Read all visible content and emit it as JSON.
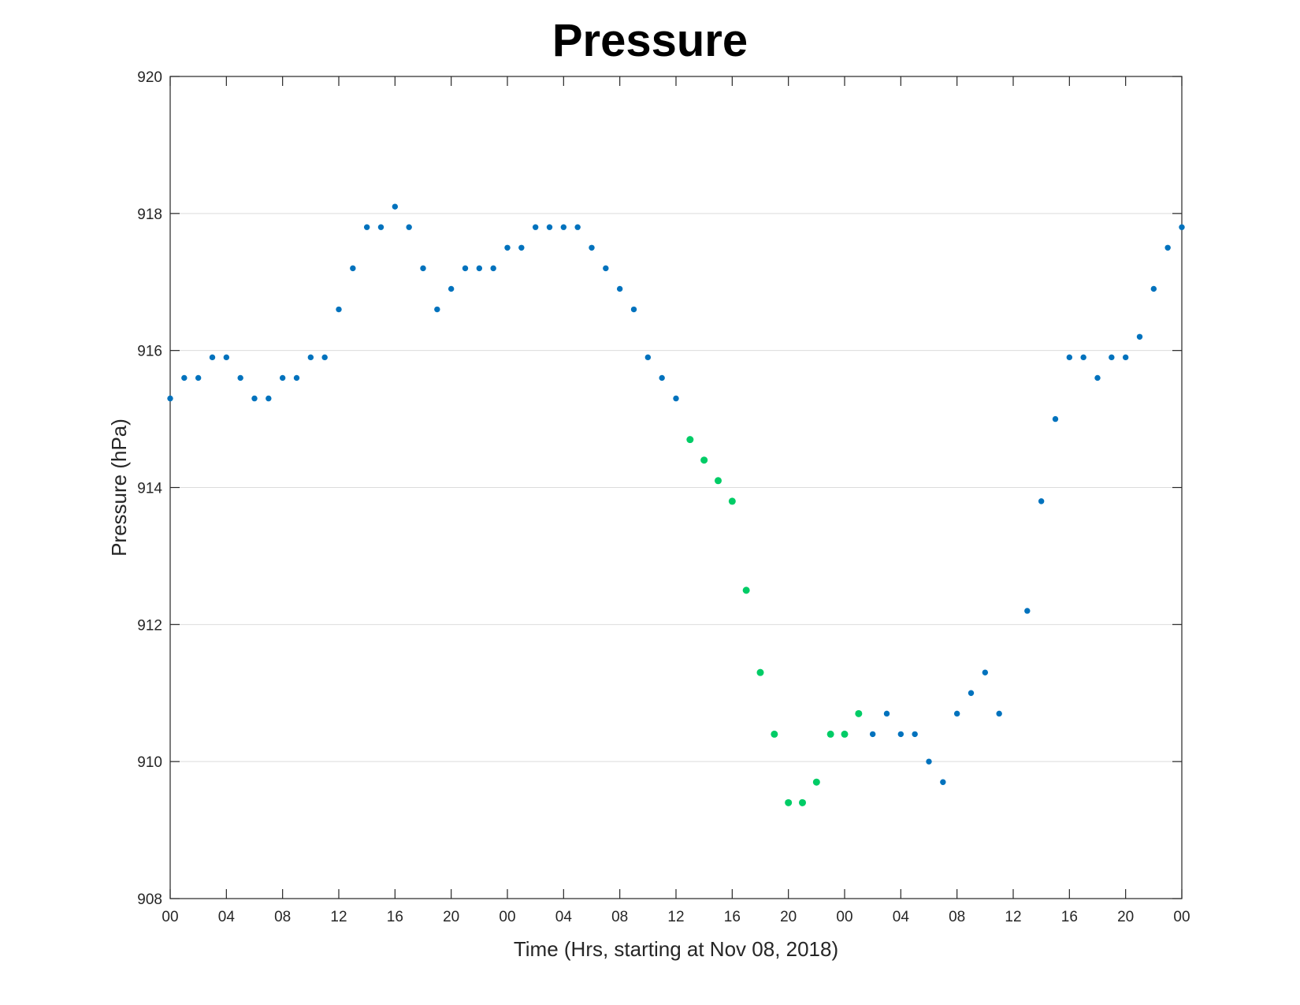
{
  "chart_data": {
    "type": "scatter",
    "title": "Pressure",
    "xlabel": "Time (Hrs, starting at Nov 08, 2018)",
    "ylabel": "Pressure (hPa)",
    "xlim": [
      0,
      72
    ],
    "ylim": [
      908,
      920
    ],
    "x_unit": "hours since Nov 08, 2018 00:00",
    "x_ticks": [
      0,
      4,
      8,
      12,
      16,
      20,
      24,
      28,
      32,
      36,
      40,
      44,
      48,
      52,
      56,
      60,
      64,
      68,
      72
    ],
    "x_tick_labels": [
      "00",
      "04",
      "08",
      "12",
      "16",
      "20",
      "00",
      "04",
      "08",
      "12",
      "16",
      "20",
      "00",
      "04",
      "08",
      "12",
      "16",
      "20",
      "00"
    ],
    "y_ticks": [
      908,
      910,
      912,
      914,
      916,
      918,
      920
    ],
    "y_tick_labels": [
      "908",
      "910",
      "912",
      "914",
      "916",
      "918",
      "920"
    ],
    "grid": "horizontal",
    "colors": {
      "blue": "#0072BD",
      "green": "#00CC66"
    },
    "points": [
      {
        "x": 0,
        "y": 915.3,
        "c": "blue"
      },
      {
        "x": 1,
        "y": 915.6,
        "c": "blue"
      },
      {
        "x": 2,
        "y": 915.6,
        "c": "blue"
      },
      {
        "x": 3,
        "y": 915.9,
        "c": "blue"
      },
      {
        "x": 4,
        "y": 915.9,
        "c": "blue"
      },
      {
        "x": 5,
        "y": 915.6,
        "c": "blue"
      },
      {
        "x": 6,
        "y": 915.3,
        "c": "blue"
      },
      {
        "x": 7,
        "y": 915.3,
        "c": "blue"
      },
      {
        "x": 8,
        "y": 915.6,
        "c": "blue"
      },
      {
        "x": 9,
        "y": 915.6,
        "c": "blue"
      },
      {
        "x": 10,
        "y": 915.9,
        "c": "blue"
      },
      {
        "x": 11,
        "y": 915.9,
        "c": "blue"
      },
      {
        "x": 12,
        "y": 916.6,
        "c": "blue"
      },
      {
        "x": 13,
        "y": 917.2,
        "c": "blue"
      },
      {
        "x": 14,
        "y": 917.8,
        "c": "blue"
      },
      {
        "x": 15,
        "y": 917.8,
        "c": "blue"
      },
      {
        "x": 16,
        "y": 918.1,
        "c": "blue"
      },
      {
        "x": 17,
        "y": 917.8,
        "c": "blue"
      },
      {
        "x": 18,
        "y": 917.2,
        "c": "blue"
      },
      {
        "x": 19,
        "y": 916.6,
        "c": "blue"
      },
      {
        "x": 20,
        "y": 916.9,
        "c": "blue"
      },
      {
        "x": 21,
        "y": 917.2,
        "c": "blue"
      },
      {
        "x": 22,
        "y": 917.2,
        "c": "blue"
      },
      {
        "x": 23,
        "y": 917.2,
        "c": "blue"
      },
      {
        "x": 24,
        "y": 917.5,
        "c": "blue"
      },
      {
        "x": 25,
        "y": 917.5,
        "c": "blue"
      },
      {
        "x": 26,
        "y": 917.8,
        "c": "blue"
      },
      {
        "x": 27,
        "y": 917.8,
        "c": "blue"
      },
      {
        "x": 28,
        "y": 917.8,
        "c": "blue"
      },
      {
        "x": 29,
        "y": 917.8,
        "c": "blue"
      },
      {
        "x": 30,
        "y": 917.5,
        "c": "blue"
      },
      {
        "x": 31,
        "y": 917.2,
        "c": "blue"
      },
      {
        "x": 32,
        "y": 916.9,
        "c": "blue"
      },
      {
        "x": 33,
        "y": 916.6,
        "c": "blue"
      },
      {
        "x": 34,
        "y": 915.9,
        "c": "blue"
      },
      {
        "x": 35,
        "y": 915.6,
        "c": "blue"
      },
      {
        "x": 36,
        "y": 915.3,
        "c": "blue"
      },
      {
        "x": 37,
        "y": 914.7,
        "c": "green"
      },
      {
        "x": 38,
        "y": 914.4,
        "c": "green"
      },
      {
        "x": 39,
        "y": 914.1,
        "c": "green"
      },
      {
        "x": 40,
        "y": 913.8,
        "c": "green"
      },
      {
        "x": 41,
        "y": 912.5,
        "c": "green"
      },
      {
        "x": 42,
        "y": 911.3,
        "c": "green"
      },
      {
        "x": 43,
        "y": 910.4,
        "c": "green"
      },
      {
        "x": 44,
        "y": 909.4,
        "c": "green"
      },
      {
        "x": 45,
        "y": 909.4,
        "c": "green"
      },
      {
        "x": 46,
        "y": 909.7,
        "c": "green"
      },
      {
        "x": 47,
        "y": 910.4,
        "c": "green"
      },
      {
        "x": 48,
        "y": 910.4,
        "c": "green"
      },
      {
        "x": 49,
        "y": 910.7,
        "c": "green"
      },
      {
        "x": 50,
        "y": 910.4,
        "c": "blue"
      },
      {
        "x": 51,
        "y": 910.7,
        "c": "blue"
      },
      {
        "x": 52,
        "y": 910.4,
        "c": "blue"
      },
      {
        "x": 53,
        "y": 910.4,
        "c": "blue"
      },
      {
        "x": 54,
        "y": 910.0,
        "c": "blue"
      },
      {
        "x": 55,
        "y": 909.7,
        "c": "blue"
      },
      {
        "x": 56,
        "y": 910.7,
        "c": "blue"
      },
      {
        "x": 57,
        "y": 911.0,
        "c": "blue"
      },
      {
        "x": 58,
        "y": 911.3,
        "c": "blue"
      },
      {
        "x": 59,
        "y": 910.7,
        "c": "blue"
      },
      {
        "x": 61,
        "y": 912.2,
        "c": "blue"
      },
      {
        "x": 62,
        "y": 913.8,
        "c": "blue"
      },
      {
        "x": 63,
        "y": 915.0,
        "c": "blue"
      },
      {
        "x": 64,
        "y": 915.9,
        "c": "blue"
      },
      {
        "x": 65,
        "y": 915.9,
        "c": "blue"
      },
      {
        "x": 66,
        "y": 915.6,
        "c": "blue"
      },
      {
        "x": 67,
        "y": 915.9,
        "c": "blue"
      },
      {
        "x": 68,
        "y": 915.9,
        "c": "blue"
      },
      {
        "x": 69,
        "y": 916.2,
        "c": "blue"
      },
      {
        "x": 70,
        "y": 916.9,
        "c": "blue"
      },
      {
        "x": 71,
        "y": 917.5,
        "c": "blue"
      },
      {
        "x": 72,
        "y": 917.8,
        "c": "blue"
      }
    ]
  }
}
